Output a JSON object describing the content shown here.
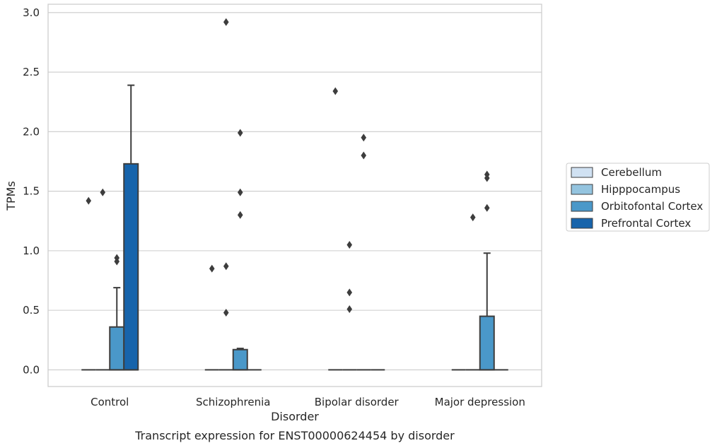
{
  "chart_data": {
    "type": "box",
    "caption": "Transcript expression for ENST00000624454 by disorder",
    "xlabel": "Disorder",
    "ylabel": "TPMs",
    "ylim": [
      -0.14,
      3.07
    ],
    "yticks": [
      0.0,
      0.5,
      1.0,
      1.5,
      2.0,
      2.5,
      3.0
    ],
    "ytick_labels": [
      "0.0",
      "0.5",
      "1.0",
      "1.5",
      "2.0",
      "2.5",
      "3.0"
    ],
    "grid": "horizontal",
    "legend_position": "right",
    "categories": [
      "Control",
      "Schizophrenia",
      "Bipolar disorder",
      "Major depression"
    ],
    "series": [
      {
        "name": "Cerebellum",
        "color": "#d0e1f2",
        "boxes": [
          {
            "q1": 0,
            "median": 0,
            "q3": 0,
            "whisker_low": 0,
            "whisker_high": 0,
            "outliers": [
              1.42
            ]
          },
          {
            "q1": 0,
            "median": 0,
            "q3": 0,
            "whisker_low": 0,
            "whisker_high": 0,
            "outliers": [
              0.85
            ]
          },
          {
            "q1": 0,
            "median": 0,
            "q3": 0,
            "whisker_low": 0,
            "whisker_high": 0,
            "outliers": [
              2.34
            ]
          },
          {
            "q1": 0,
            "median": 0,
            "q3": 0,
            "whisker_low": 0,
            "whisker_high": 0,
            "outliers": []
          }
        ]
      },
      {
        "name": "Hipppocampus",
        "color": "#94c4df",
        "boxes": [
          {
            "q1": 0,
            "median": 0,
            "q3": 0,
            "whisker_low": 0,
            "whisker_high": 0,
            "outliers": [
              1.49
            ]
          },
          {
            "q1": 0,
            "median": 0,
            "q3": 0,
            "whisker_low": 0,
            "whisker_high": 0,
            "outliers": [
              2.92,
              0.87,
              0.48
            ]
          },
          {
            "q1": 0,
            "median": 0,
            "q3": 0,
            "whisker_low": 0,
            "whisker_high": 0,
            "outliers": [
              1.05,
              0.65,
              0.51
            ]
          },
          {
            "q1": 0,
            "median": 0,
            "q3": 0,
            "whisker_low": 0,
            "whisker_high": 0,
            "outliers": [
              1.28
            ]
          }
        ]
      },
      {
        "name": "Orbitofontal Cortex",
        "color": "#4a98c9",
        "boxes": [
          {
            "q1": 0,
            "median": 0,
            "q3": 0.36,
            "whisker_low": 0,
            "whisker_high": 0.69,
            "outliers": [
              0.94,
              0.91
            ]
          },
          {
            "q1": 0,
            "median": 0,
            "q3": 0.17,
            "whisker_low": 0,
            "whisker_high": 0.18,
            "outliers": [
              1.99,
              1.49,
              1.3
            ]
          },
          {
            "q1": 0,
            "median": 0,
            "q3": 0,
            "whisker_low": 0,
            "whisker_high": 0,
            "outliers": [
              1.95,
              1.8
            ]
          },
          {
            "q1": 0,
            "median": 0,
            "q3": 0.45,
            "whisker_low": 0,
            "whisker_high": 0.98,
            "outliers": [
              1.64,
              1.61,
              1.36
            ]
          }
        ]
      },
      {
        "name": "Prefrontal Cortex",
        "color": "#1764ab",
        "boxes": [
          {
            "q1": 0,
            "median": 0,
            "q3": 1.73,
            "whisker_low": 0,
            "whisker_high": 2.39,
            "outliers": []
          },
          {
            "q1": 0,
            "median": 0,
            "q3": 0,
            "whisker_low": 0,
            "whisker_high": 0,
            "outliers": []
          },
          {
            "q1": 0,
            "median": 0,
            "q3": 0,
            "whisker_low": 0,
            "whisker_high": 0,
            "outliers": []
          },
          {
            "q1": 0,
            "median": 0,
            "q3": 0,
            "whisker_low": 0,
            "whisker_high": 0,
            "outliers": []
          }
        ]
      }
    ]
  }
}
